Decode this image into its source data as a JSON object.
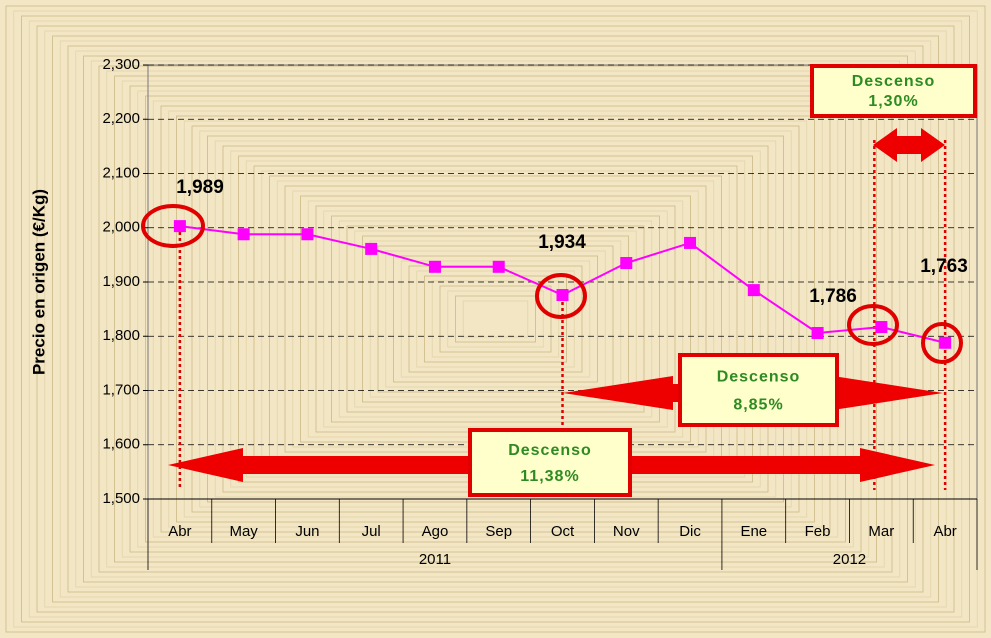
{
  "chart_data": {
    "type": "line",
    "y_label": "Precio en origen (€/Kg)",
    "categories": [
      "Abr",
      "May",
      "Jun",
      "Jul",
      "Ago",
      "Sep",
      "Oct",
      "Nov",
      "Dic",
      "Ene",
      "Feb",
      "Mar",
      "Abr"
    ],
    "groups": [
      "2011",
      "2012"
    ],
    "series": [
      {
        "name": "Precio",
        "color": "#ff00ff",
        "values": [
          2003,
          1988,
          1988,
          1961,
          1928,
          1928,
          1876,
          1935,
          1972,
          1885,
          1806,
          1817,
          1788
        ]
      }
    ],
    "ylim": [
      1500,
      2300
    ],
    "yticks": [
      {
        "value": 1500,
        "label": "1,500"
      },
      {
        "value": 1600,
        "label": "1,600"
      },
      {
        "value": 1700,
        "label": "1,700"
      },
      {
        "value": 1800,
        "label": "1,800"
      },
      {
        "value": 1900,
        "label": "1,900"
      },
      {
        "value": 2000,
        "label": "2,000"
      },
      {
        "value": 2100,
        "label": "2,100"
      },
      {
        "value": 2200,
        "label": "2,200"
      },
      {
        "value": 2300,
        "label": "2,300"
      }
    ],
    "grid": true,
    "annotations": [
      "1,989",
      "1,934",
      "1,786",
      "1,763"
    ],
    "callouts": [
      {
        "title": "Descenso",
        "value": "1,30%"
      },
      {
        "title": "Descenso",
        "value": "8,85%"
      },
      {
        "title": "Descenso",
        "value": "11,38%"
      }
    ]
  }
}
